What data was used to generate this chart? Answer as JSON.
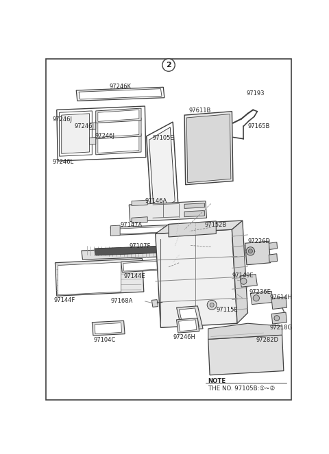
{
  "bg_color": "#ffffff",
  "border_color": "#404040",
  "line_color": "#404040",
  "text_color": "#222222",
  "figsize": [
    4.8,
    6.63
  ],
  "dpi": 100,
  "circle_label": "2",
  "note_text": "NOTE",
  "note_sub": "THE NO. 97105B:①~②"
}
